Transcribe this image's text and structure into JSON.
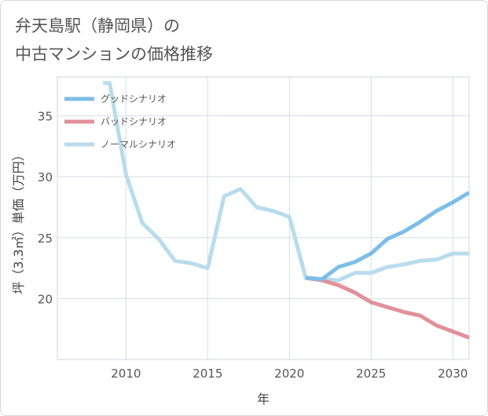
{
  "title_line1": "弁天島駅（静岡県）の",
  "title_line2": "中古マンションの価格推移",
  "chart_data": {
    "type": "line",
    "title": "弁天島駅（静岡県）の中古マンションの価格推移",
    "xlabel": "年",
    "ylabel": "坪（3.3㎡）単価（万円）",
    "xlim": [
      2005.8,
      2031
    ],
    "ylim": [
      15.0,
      38.2
    ],
    "x_ticks": [
      2010,
      2015,
      2020,
      2025,
      2030
    ],
    "y_ticks": [
      20,
      25,
      30,
      35
    ],
    "grid": true,
    "legend_position": "top-left",
    "series": [
      {
        "name": "グッドシナリオ",
        "color": "#7dbde8",
        "x": [
          2021,
          2022,
          2023,
          2024,
          2025,
          2026,
          2027,
          2028,
          2029,
          2030,
          2031
        ],
        "y": [
          21.7,
          21.6,
          22.6,
          23.0,
          23.7,
          24.9,
          25.5,
          26.3,
          27.2,
          27.9,
          28.7
        ]
      },
      {
        "name": "バッドシナリオ",
        "color": "#e0919a",
        "x": [
          2021,
          2022,
          2023,
          2024,
          2025,
          2026,
          2027,
          2028,
          2029,
          2030,
          2031
        ],
        "y": [
          21.7,
          21.5,
          21.1,
          20.5,
          19.7,
          19.3,
          18.9,
          18.6,
          17.8,
          17.3,
          16.8
        ]
      },
      {
        "name": "ノーマルシナリオ",
        "color": "#b8dcec",
        "x": [
          2008.6,
          2009,
          2010,
          2011,
          2012,
          2013,
          2014,
          2015,
          2016,
          2017,
          2018,
          2019,
          2020,
          2021,
          2022,
          2023,
          2024,
          2025,
          2026,
          2027,
          2028,
          2029,
          2030,
          2031
        ],
        "y": [
          37.7,
          37.7,
          30.2,
          26.2,
          24.9,
          23.1,
          22.9,
          22.5,
          28.4,
          29.0,
          27.5,
          27.2,
          26.7,
          21.7,
          21.6,
          21.5,
          22.1,
          22.1,
          22.6,
          22.8,
          23.1,
          23.2,
          23.7,
          23.7
        ]
      }
    ]
  }
}
